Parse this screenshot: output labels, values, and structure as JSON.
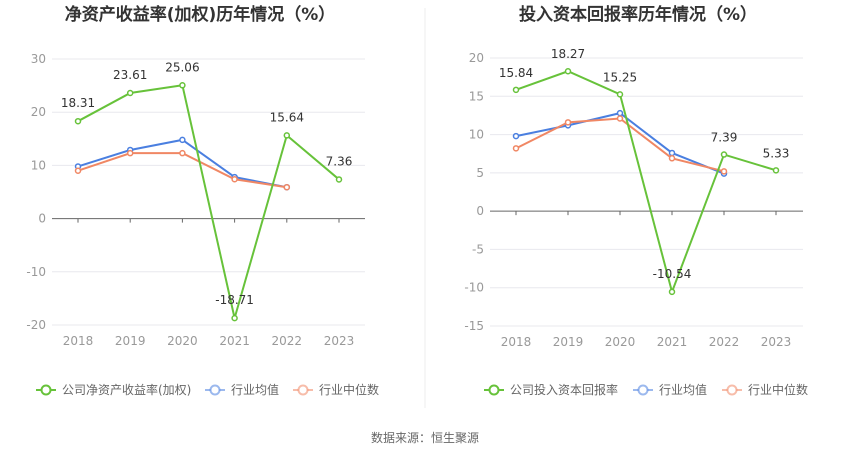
{
  "source": "数据来源：恒生聚源",
  "charts": [
    {
      "type": "line",
      "title": "净资产收益率(加权)历年情况（%）",
      "categories": [
        "2018",
        "2019",
        "2020",
        "2021",
        "2022",
        "2023"
      ],
      "ylim": [
        -20,
        30
      ],
      "yticks": [
        30,
        20,
        10,
        0,
        -10,
        -20
      ],
      "grid": true,
      "legend": "bottom-left",
      "series": [
        {
          "name": "公司净资产收益率(加权)",
          "color": "#67c23a",
          "values": [
            18.31,
            23.61,
            25.06,
            -18.71,
            15.64,
            7.36
          ],
          "labels": [
            "18.31",
            "23.61",
            "25.06",
            "-18.71",
            "15.64",
            "7.36"
          ]
        },
        {
          "name": "行业均值",
          "color": "#4a7fe0",
          "values": [
            9.8,
            12.9,
            14.8,
            7.8,
            5.9,
            null
          ]
        },
        {
          "name": "行业中位数",
          "color": "#f08764",
          "values": [
            9.0,
            12.3,
            12.3,
            7.4,
            5.9,
            null
          ]
        }
      ]
    },
    {
      "type": "line",
      "title": "投入资本回报率历年情况（%）",
      "categories": [
        "2018",
        "2019",
        "2020",
        "2021",
        "2022",
        "2023"
      ],
      "ylim": [
        -15,
        20
      ],
      "yticks": [
        20,
        15,
        10,
        5,
        0,
        -5,
        -10,
        -15
      ],
      "grid": true,
      "legend": "bottom-left",
      "series": [
        {
          "name": "公司投入资本回报率",
          "color": "#67c23a",
          "values": [
            15.84,
            18.27,
            15.25,
            -10.54,
            7.39,
            5.33
          ],
          "labels": [
            "15.84",
            "18.27",
            "15.25",
            "-10.54",
            "7.39",
            "5.33"
          ]
        },
        {
          "name": "行业均值",
          "color": "#4a7fe0",
          "values": [
            9.8,
            11.2,
            12.8,
            7.6,
            4.9,
            null
          ]
        },
        {
          "name": "行业中位数",
          "color": "#f08764",
          "values": [
            8.2,
            11.6,
            12.1,
            6.9,
            5.2,
            null
          ]
        }
      ]
    }
  ]
}
